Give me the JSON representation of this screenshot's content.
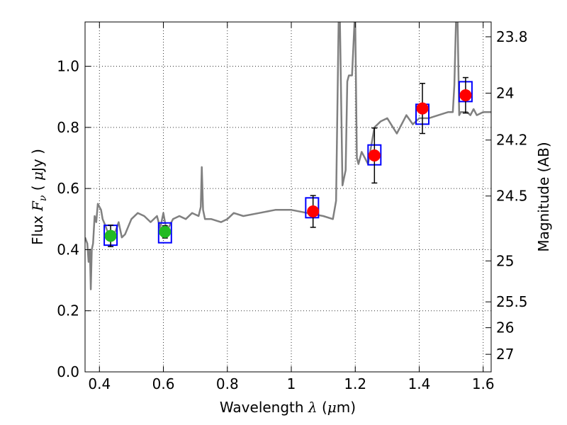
{
  "chart_data": {
    "type": "line",
    "xlabel": "Wavelength  λ (μm)",
    "ylabel": "Flux  Fν ( μJy )",
    "y2label": "Magnitude (AB)",
    "xlim": [
      0.355,
      1.625
    ],
    "ylim": [
      0.0,
      1.145
    ],
    "grid": true,
    "x_ticks": [
      "0.4",
      "0.6",
      "0.8",
      "1",
      "1.2",
      "1.4",
      "1.6"
    ],
    "x_tick_values": [
      0.4,
      0.6,
      0.8,
      1.0,
      1.2,
      1.4,
      1.6
    ],
    "y_ticks": [
      "0.0",
      "0.2",
      "0.4",
      "0.6",
      "0.8",
      "1.0"
    ],
    "y_tick_values": [
      0.0,
      0.2,
      0.4,
      0.6,
      0.8,
      1.0
    ],
    "y2_ticks": [
      "23.8",
      "24",
      "24.2",
      "24.5",
      "25",
      "25.5",
      "26",
      "27"
    ],
    "y2_tick_values": [
      23.8,
      24.0,
      24.2,
      24.5,
      25.0,
      25.5,
      26.0,
      27.0
    ],
    "colors": {
      "model": "#808080",
      "model_points": "#0000ff",
      "optical": "#22bb22",
      "nir": "#ff0000",
      "errorbar": "#000000",
      "grid": "#808080"
    },
    "model_spectrum": {
      "x": [
        0.355,
        0.362,
        0.366,
        0.37,
        0.373,
        0.376,
        0.38,
        0.385,
        0.39,
        0.395,
        0.4,
        0.405,
        0.41,
        0.418,
        0.425,
        0.43,
        0.44,
        0.45,
        0.46,
        0.47,
        0.48,
        0.5,
        0.52,
        0.54,
        0.56,
        0.58,
        0.59,
        0.6,
        0.61,
        0.63,
        0.65,
        0.67,
        0.69,
        0.71,
        0.717,
        0.72,
        0.724,
        0.73,
        0.75,
        0.78,
        0.8,
        0.82,
        0.85,
        0.9,
        0.95,
        1.0,
        1.05,
        1.1,
        1.13,
        1.14,
        1.148,
        1.152,
        1.16,
        1.17,
        1.175,
        1.18,
        1.19,
        1.198,
        1.2,
        1.205,
        1.21,
        1.22,
        1.24,
        1.26,
        1.28,
        1.3,
        1.33,
        1.36,
        1.38,
        1.4,
        1.43,
        1.46,
        1.49,
        1.505,
        1.51,
        1.515,
        1.52,
        1.525,
        1.53,
        1.54,
        1.55,
        1.56,
        1.57,
        1.58,
        1.6,
        1.625
      ],
      "y": [
        0.44,
        0.42,
        0.36,
        0.4,
        0.27,
        0.4,
        0.42,
        0.51,
        0.49,
        0.55,
        0.54,
        0.53,
        0.5,
        0.48,
        0.46,
        0.44,
        0.44,
        0.46,
        0.49,
        0.44,
        0.45,
        0.5,
        0.52,
        0.51,
        0.49,
        0.51,
        0.47,
        0.52,
        0.46,
        0.5,
        0.51,
        0.5,
        0.52,
        0.51,
        0.54,
        0.67,
        0.53,
        0.5,
        0.5,
        0.49,
        0.5,
        0.52,
        0.51,
        0.52,
        0.53,
        0.53,
        0.52,
        0.51,
        0.5,
        0.56,
        1.15,
        1.15,
        0.61,
        0.66,
        0.95,
        0.97,
        0.97,
        1.15,
        1.15,
        0.7,
        0.68,
        0.72,
        0.68,
        0.8,
        0.82,
        0.83,
        0.78,
        0.84,
        0.81,
        0.83,
        0.83,
        0.84,
        0.85,
        0.85,
        0.94,
        1.15,
        1.15,
        0.84,
        0.85,
        0.85,
        0.85,
        0.84,
        0.86,
        0.84,
        0.85,
        0.85
      ]
    },
    "model_photometry": {
      "x": [
        0.435,
        0.605,
        1.065,
        1.26,
        1.41,
        1.545
      ],
      "y": [
        0.447,
        0.455,
        0.537,
        0.71,
        0.843,
        0.917
      ]
    },
    "observed_optical": {
      "x": [
        0.435,
        0.605
      ],
      "y": [
        0.445,
        0.458
      ],
      "yerr": [
        0.035,
        0.02
      ]
    },
    "observed_nir": {
      "x": [
        1.068,
        1.26,
        1.41,
        1.545
      ],
      "y": [
        0.525,
        0.708,
        0.862,
        0.905
      ],
      "yerr": [
        0.052,
        0.09,
        0.082,
        0.058
      ]
    }
  }
}
